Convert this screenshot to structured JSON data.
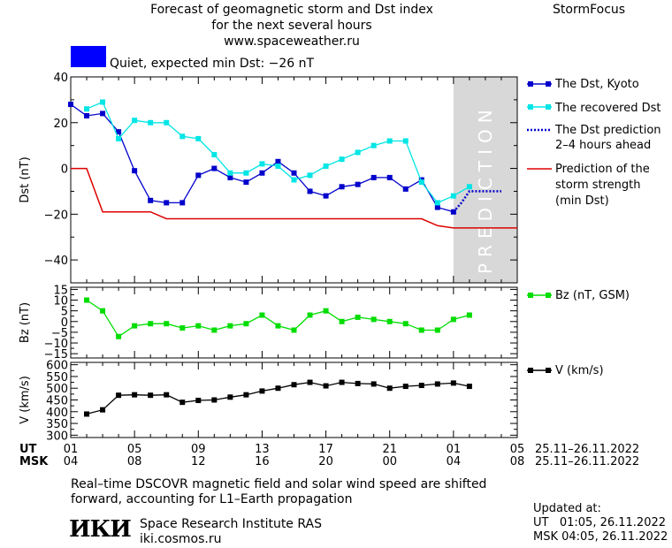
{
  "header": {
    "title_line1": "Forecast of geomagnetic storm and Dst index",
    "title_line2": "for the next several hours",
    "title_line3": "www.spaceweather.ru",
    "brand": "StormFocus",
    "status_text": "Quiet, expected min Dst: −26 nT",
    "status_color": "#0000ff"
  },
  "legends": {
    "dst_kyoto": "The Dst, Kyoto",
    "dst_recovered": "The recovered Dst",
    "dst_prediction": [
      "The Dst prediction",
      "2–4 hours ahead"
    ],
    "storm_strength": [
      "Prediction of the",
      "storm strength",
      "(min Dst)"
    ],
    "bz": "Bz (nT, GSM)",
    "v": "V (km/s)"
  },
  "prediction_label": "PREDICTION",
  "x_axis": {
    "ut_label": "UT",
    "msk_label": "MSK",
    "ut_ticks": [
      "01",
      "05",
      "09",
      "13",
      "17",
      "21",
      "01",
      "05"
    ],
    "msk_ticks": [
      "04",
      "08",
      "12",
      "16",
      "20",
      "00",
      "04",
      "08"
    ],
    "ut_range": "25.11–26.11.2022",
    "msk_range": "25.11–26.11.2022"
  },
  "footer": {
    "note_line1": "Real–time DSCOVR magnetic field and solar wind speed are shifted",
    "note_line2": "forward, accounting for L1–Earth propagation",
    "logo": "ИКИ",
    "institute": "Space Research Institute RAS",
    "site": "iki.cosmos.ru",
    "updated_label": "Updated at:",
    "updated_ut": "UT   01:05, 26.11.2022",
    "updated_msk": "MSK 04:05, 26.11.2022"
  },
  "chart_data": [
    {
      "type": "line",
      "ylabel": "Dst (nT)",
      "ylim": [
        -50,
        40
      ],
      "yticks": [
        40,
        20,
        0,
        -20,
        -40
      ],
      "xlim": [
        0,
        28
      ],
      "prediction_region": [
        24,
        28
      ],
      "series": [
        {
          "name": "The Dst, Kyoto",
          "color": "#0000cc",
          "marker": "square",
          "x": [
            0,
            1,
            2,
            3,
            4,
            5,
            6,
            7,
            8,
            9,
            10,
            11,
            12,
            13,
            14,
            15,
            16,
            17,
            18,
            19,
            20,
            21,
            22,
            23,
            24
          ],
          "values": [
            28,
            23,
            24,
            16,
            -1,
            -14,
            -15,
            -15,
            -3,
            0,
            -4,
            -6,
            -2,
            3,
            -2,
            -10,
            -12,
            -8,
            -7,
            -4,
            -4,
            -9,
            -5,
            -17,
            -19
          ]
        },
        {
          "name": "The recovered Dst",
          "color": "#00e5e5",
          "marker": "square",
          "x": [
            1,
            2,
            3,
            4,
            5,
            6,
            7,
            8,
            9,
            10,
            11,
            12,
            13,
            14,
            15,
            16,
            17,
            18,
            19,
            20,
            21,
            22,
            23,
            24,
            25
          ],
          "values": [
            26,
            29,
            13,
            21,
            20,
            20,
            14,
            13,
            6,
            -2,
            -2,
            2,
            1,
            -5,
            -3,
            1,
            4,
            7,
            10,
            12,
            12,
            -6,
            -15,
            -12,
            -8
          ]
        },
        {
          "name": "The Dst prediction",
          "color": "#0000cc",
          "dash": true,
          "x": [
            24,
            24.5,
            25,
            26,
            27
          ],
          "values": [
            -19,
            -15,
            -10,
            -10,
            -10
          ]
        },
        {
          "name": "Prediction of the storm strength (min Dst)",
          "color": "#dd0000",
          "step": true,
          "x": [
            0,
            1,
            2,
            3,
            4,
            5,
            6,
            22,
            23,
            24,
            25,
            28
          ],
          "values": [
            0,
            0,
            -19,
            -19,
            -19,
            -19,
            -22,
            -22,
            -25,
            -26,
            -26,
            -26
          ]
        }
      ]
    },
    {
      "type": "line",
      "ylabel": "Bz (nT)",
      "ylim": [
        -17,
        16
      ],
      "yticks": [
        15,
        10,
        5,
        0,
        -5,
        -10,
        -15
      ],
      "series": [
        {
          "name": "Bz (nT, GSM)",
          "color": "#00dd00",
          "marker": "square",
          "x": [
            1,
            2,
            3,
            4,
            5,
            6,
            7,
            8,
            9,
            10,
            11,
            12,
            13,
            14,
            15,
            16,
            17,
            18,
            19,
            20,
            21,
            22,
            23,
            24,
            25
          ],
          "values": [
            10,
            5,
            -7,
            -2,
            -1,
            -1,
            -3,
            -2,
            -4,
            -2,
            -1,
            3,
            -2,
            -4,
            3,
            5,
            0,
            2,
            1,
            0,
            -1,
            -4,
            -4,
            1,
            3
          ]
        }
      ]
    },
    {
      "type": "line",
      "ylabel": "V (km/s)",
      "ylim": [
        290,
        610
      ],
      "yticks": [
        600,
        550,
        500,
        450,
        400,
        350,
        300
      ],
      "series": [
        {
          "name": "V (km/s)",
          "color": "#000000",
          "marker": "square",
          "x": [
            1,
            2,
            3,
            4,
            5,
            6,
            7,
            8,
            9,
            10,
            11,
            12,
            13,
            14,
            15,
            16,
            17,
            18,
            19,
            20,
            21,
            22,
            23,
            24,
            25
          ],
          "values": [
            390,
            408,
            470,
            472,
            470,
            472,
            440,
            448,
            450,
            462,
            472,
            488,
            500,
            515,
            525,
            510,
            525,
            520,
            518,
            500,
            508,
            512,
            518,
            522,
            508
          ]
        }
      ]
    }
  ]
}
